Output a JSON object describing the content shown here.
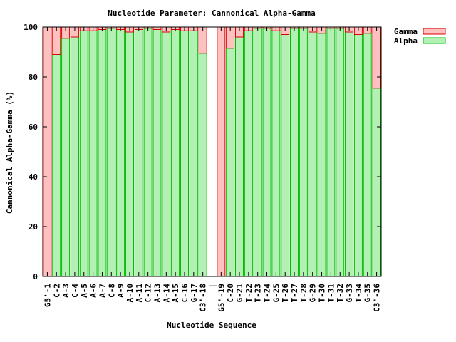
{
  "chart_data": {
    "type": "bar",
    "stacked": true,
    "title": "Nucleotide Parameter: Cannonical Alpha-Gamma",
    "xlabel": "Nucleotide Sequence",
    "ylabel": "Cannonical Alpha-Gamma (%)",
    "ylim": [
      0,
      100
    ],
    "yticks": [
      0,
      20,
      40,
      60,
      80,
      100
    ],
    "grid": false,
    "legend_position": "outside-top-right",
    "categories": [
      "G5'-1",
      "C-2",
      "A-3",
      "C-4",
      "A-5",
      "A-6",
      "A-7",
      "C-8",
      "A-9",
      "A-10",
      "A-11",
      "C-12",
      "A-13",
      "A-14",
      "A-15",
      "C-16",
      "G-17",
      "C3'-18",
      "|",
      "G5'-19",
      "C-20",
      "G-21",
      "T-22",
      "T-23",
      "T-24",
      "G-25",
      "T-26",
      "T-27",
      "T-28",
      "G-29",
      "T-30",
      "T-31",
      "T-32",
      "G-33",
      "T-34",
      "G-35",
      "C3'-36"
    ],
    "series": [
      {
        "name": "Alpha",
        "color": "#b3f0b3",
        "stroke": "#00bb00",
        "values": [
          0,
          89,
          95.5,
          96,
          98.5,
          98.5,
          99,
          99.5,
          99,
          98,
          99,
          99.5,
          99,
          98,
          99,
          98.5,
          98.5,
          89.5,
          0,
          0,
          91.5,
          96,
          98.5,
          99.5,
          99.5,
          98.5,
          97,
          99.5,
          99.5,
          98,
          97.5,
          99.5,
          99.5,
          98,
          97,
          97.5,
          75.5
        ]
      },
      {
        "name": "Gamma",
        "color": "#ffc0c0",
        "stroke": "#dd0000",
        "values": [
          100,
          11,
          4.5,
          4,
          1.5,
          1.5,
          1,
          0.5,
          1,
          2,
          1,
          0.5,
          1,
          2,
          1,
          1.5,
          1.5,
          10.5,
          0,
          100,
          8.5,
          4,
          1.5,
          0.5,
          0.5,
          1.5,
          3,
          0.5,
          0.5,
          2,
          2.5,
          0.5,
          0.5,
          2,
          3,
          2.5,
          24.5
        ]
      }
    ]
  }
}
